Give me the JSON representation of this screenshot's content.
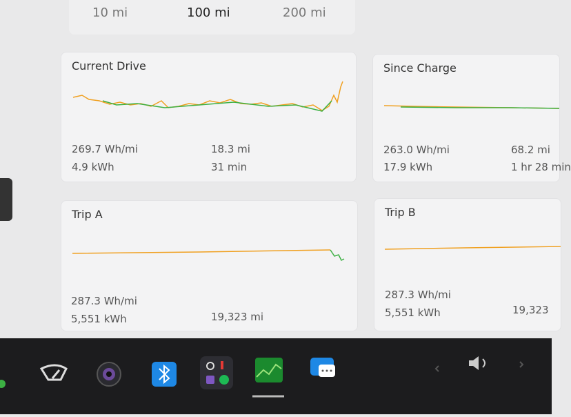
{
  "tabs": [
    "10 mi",
    "100 mi",
    "200 mi"
  ],
  "cards": [
    {
      "title": "Current Drive",
      "stats": [
        "269.7 Wh/mi",
        "4.9 kWh",
        "18.3 mi",
        "31 min"
      ]
    },
    {
      "title": "Since Charge",
      "stats": [
        "263.0 Wh/mi",
        "17.9 kWh",
        "68.2 mi",
        "1 hr 28 min"
      ]
    },
    {
      "title": "Trip A",
      "stats": [
        "287.3 Wh/mi",
        "5,551 kWh",
        "19,323 mi"
      ]
    },
    {
      "title": "Trip B",
      "stats": [
        "287.3 Wh/mi",
        "5,551 kWh",
        "19,323"
      ]
    }
  ]
}
